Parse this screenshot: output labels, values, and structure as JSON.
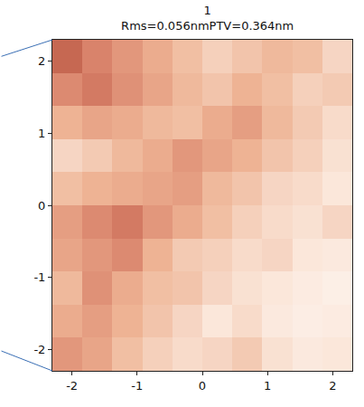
{
  "chart_data": {
    "type": "heatmap",
    "title": "1",
    "subtitle": "Rms=0.056nmPTV=0.364nm",
    "x": [
      -2.07,
      -1.61,
      -1.15,
      -0.69,
      -0.23,
      0.23,
      0.69,
      1.15,
      1.61,
      2.07
    ],
    "y": [
      -2.07,
      -1.61,
      -1.15,
      -0.69,
      -0.23,
      0.23,
      0.69,
      1.15,
      1.61,
      2.07
    ],
    "z": [
      [
        0.08,
        0.06,
        0.02,
        -0.01,
        -0.03,
        -0.02,
        0.0,
        -0.04,
        -0.06,
        -0.05
      ],
      [
        0.05,
        0.07,
        0.04,
        0.01,
        -0.02,
        -0.05,
        -0.03,
        -0.06,
        -0.08,
        -0.07
      ],
      [
        0.03,
        0.09,
        0.05,
        0.02,
        0.01,
        -0.02,
        -0.04,
        -0.05,
        -0.07,
        -0.09
      ],
      [
        0.06,
        0.08,
        0.1,
        0.04,
        0.0,
        -0.01,
        -0.03,
        -0.02,
        -0.05,
        -0.06
      ],
      [
        0.07,
        0.1,
        0.12,
        0.08,
        0.05,
        0.02,
        -0.01,
        -0.03,
        -0.04,
        -0.02
      ],
      [
        0.02,
        0.04,
        0.05,
        0.06,
        0.07,
        0.03,
        0.01,
        -0.02,
        -0.03,
        -0.05
      ],
      [
        -0.02,
        0.0,
        0.03,
        0.05,
        0.08,
        0.06,
        0.04,
        0.01,
        -0.01,
        -0.04
      ],
      [
        0.04,
        0.06,
        0.05,
        0.03,
        0.02,
        0.05,
        0.07,
        0.03,
        0.0,
        -0.03
      ],
      [
        0.1,
        0.12,
        0.09,
        0.06,
        0.03,
        0.01,
        0.04,
        0.02,
        -0.01,
        0.0
      ],
      [
        0.14,
        0.11,
        0.08,
        0.05,
        0.02,
        -0.01,
        0.01,
        0.03,
        0.02,
        -0.02
      ]
    ],
    "zlim": [
      -0.18,
      0.184
    ],
    "xlim": [
      -2.3,
      2.3
    ],
    "ylim": [
      -2.3,
      2.3
    ],
    "xticks": [
      -2,
      -1,
      0,
      1,
      2
    ],
    "yticks": [
      -2,
      -1,
      0,
      1,
      2
    ],
    "grid": false
  }
}
